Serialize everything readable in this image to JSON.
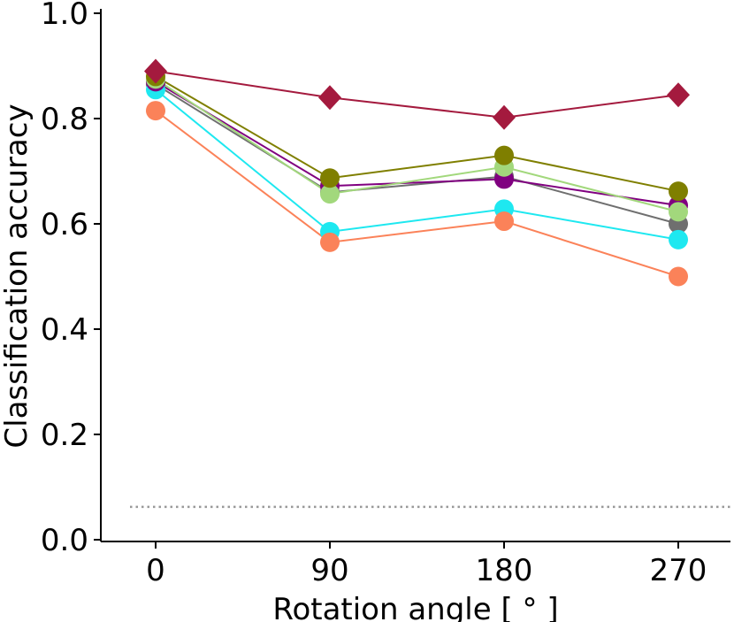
{
  "chart_data": {
    "type": "line",
    "title": "",
    "xlabel": "Rotation angle [ ° ]",
    "ylabel": "Classification accuracy",
    "categories": [
      0,
      90,
      180,
      270
    ],
    "x_tick_labels": [
      "0",
      "90",
      "180",
      "270"
    ],
    "ylim": [
      0.0,
      1.0
    ],
    "y_ticks": [
      0.0,
      0.2,
      0.4,
      0.6,
      0.8,
      1.0
    ],
    "y_tick_labels": [
      "0.0",
      "0.2",
      "0.4",
      "0.6",
      "0.8",
      "1.0"
    ],
    "grid": false,
    "legend": "none",
    "chance_level": 0.0625,
    "series": [
      {
        "name": "series-gray",
        "color": "#6f6f6f",
        "marker": "circle",
        "values": [
          0.865,
          0.66,
          0.69,
          0.6
        ]
      },
      {
        "name": "series-cyan",
        "color": "#1ee8f0",
        "marker": "circle",
        "values": [
          0.855,
          0.585,
          0.628,
          0.57
        ]
      },
      {
        "name": "series-orange",
        "color": "#fb8259",
        "marker": "circle",
        "values": [
          0.815,
          0.565,
          0.605,
          0.5
        ]
      },
      {
        "name": "series-purple",
        "color": "#800080",
        "marker": "circle",
        "values": [
          0.87,
          0.672,
          0.685,
          0.635
        ]
      },
      {
        "name": "series-lightgreen",
        "color": "#a2d87c",
        "marker": "circle",
        "values": [
          0.875,
          0.657,
          0.708,
          0.623
        ]
      },
      {
        "name": "series-olive",
        "color": "#7f7f00",
        "marker": "circle",
        "values": [
          0.88,
          0.687,
          0.73,
          0.662
        ]
      },
      {
        "name": "series-crimson",
        "color": "#a41a3e",
        "marker": "diamond",
        "values": [
          0.89,
          0.84,
          0.802,
          0.845
        ]
      }
    ]
  }
}
